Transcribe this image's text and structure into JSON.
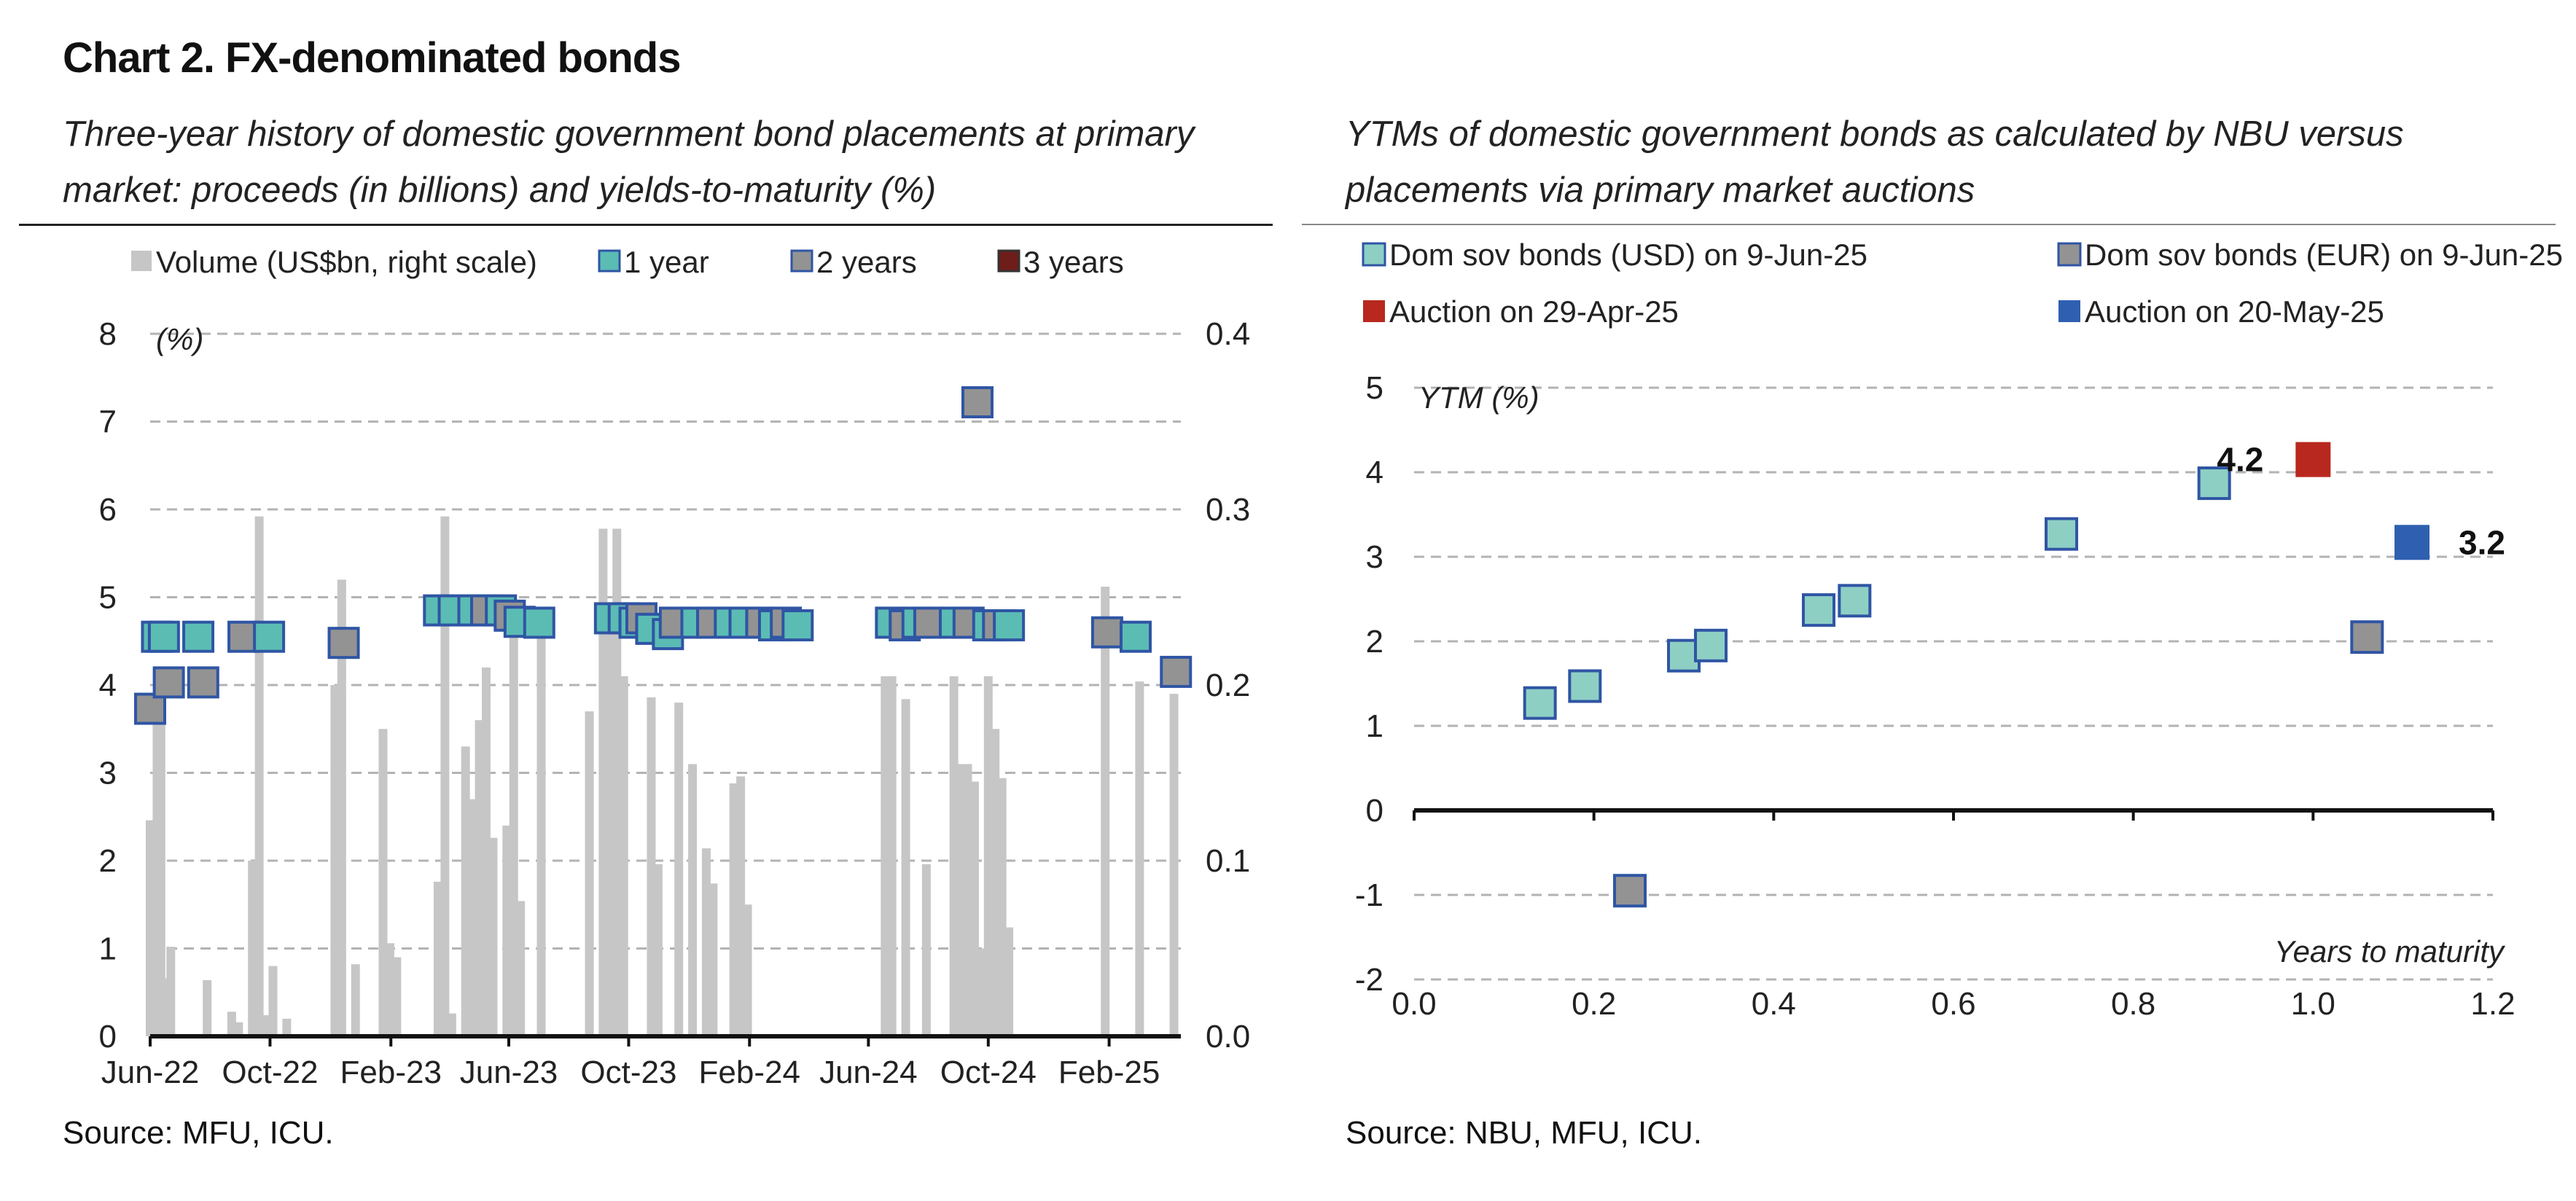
{
  "header": {
    "title": "Chart 2. FX-denominated bonds",
    "left_subtitle": "Three-year history of domestic government bond placements at primary market: proceeds (in billions) and yields-to-maturity (%)",
    "right_subtitle": "YTMs of domestic government bonds as calculated by NBU versus placements via primary market auctions"
  },
  "footer": {
    "left_source": "Source: MFU, ICU.",
    "right_source": "Source: NBU, MFU, ICU."
  },
  "colors": {
    "volume": "#c6c6c6",
    "one_year": "#5bbcb4",
    "two_year": "#939393",
    "three_year": "#6e1d1a",
    "marker_border": "#2f55a4",
    "usd": "#8ecfc4",
    "eur": "#939393",
    "auction_apr": "#b8281e",
    "auction_may": "#2f5fb0",
    "grid": "#b3b3b3"
  },
  "chart_data": [
    {
      "type": "bar",
      "title": "",
      "left_axis_label": "(%)",
      "right_axis_label": "",
      "ylim_left": [
        0,
        8
      ],
      "ylim_right": [
        0,
        0.4
      ],
      "yticks_left": [
        "0",
        "1",
        "2",
        "3",
        "4",
        "5",
        "6",
        "7",
        "8"
      ],
      "yticks_right": [
        "0.0",
        "0.1",
        "0.2",
        "0.3",
        "0.4"
      ],
      "xlim": [
        "2022-06-01",
        "2025-04-15"
      ],
      "xticks": [
        {
          "date": "2022-06-01",
          "label": "Jun-22"
        },
        {
          "date": "2022-10-01",
          "label": "Oct-22"
        },
        {
          "date": "2023-02-01",
          "label": "Feb-23"
        },
        {
          "date": "2023-06-01",
          "label": "Jun-23"
        },
        {
          "date": "2023-10-01",
          "label": "Oct-23"
        },
        {
          "date": "2024-02-01",
          "label": "Feb-24"
        },
        {
          "date": "2024-06-01",
          "label": "Jun-24"
        },
        {
          "date": "2024-10-01",
          "label": "Oct-24"
        },
        {
          "date": "2025-02-01",
          "label": "Feb-25"
        }
      ],
      "legend": [
        {
          "key": "volume",
          "label": "Volume (US$bn, right scale)"
        },
        {
          "key": "one_year",
          "label": "1 year"
        },
        {
          "key": "two_year",
          "label": "2 years"
        },
        {
          "key": "three_year",
          "label": "3 years"
        }
      ],
      "legend_position": "top",
      "grid": true,
      "volume_bars": [
        {
          "date": "2022-06-01",
          "value": 0.123
        },
        {
          "date": "2022-06-04",
          "value": 0.05
        },
        {
          "date": "2022-06-08",
          "value": 0.18
        },
        {
          "date": "2022-06-12",
          "value": 0.19
        },
        {
          "date": "2022-06-15",
          "value": 0.02
        },
        {
          "date": "2022-06-18",
          "value": 0.033
        },
        {
          "date": "2022-06-22",
          "value": 0.051
        },
        {
          "date": "2022-07-29",
          "value": 0.032
        },
        {
          "date": "2022-08-23",
          "value": 0.014
        },
        {
          "date": "2022-08-30",
          "value": 0.008
        },
        {
          "date": "2022-09-13",
          "value": 0.1
        },
        {
          "date": "2022-09-20",
          "value": 0.296
        },
        {
          "date": "2022-09-27",
          "value": 0.012
        },
        {
          "date": "2022-10-04",
          "value": 0.04
        },
        {
          "date": "2022-10-18",
          "value": 0.01
        },
        {
          "date": "2022-12-06",
          "value": 0.2
        },
        {
          "date": "2022-12-13",
          "value": 0.26
        },
        {
          "date": "2022-12-27",
          "value": 0.041
        },
        {
          "date": "2023-01-24",
          "value": 0.175
        },
        {
          "date": "2023-01-31",
          "value": 0.053
        },
        {
          "date": "2023-02-07",
          "value": 0.045
        },
        {
          "date": "2023-03-21",
          "value": 0.088
        },
        {
          "date": "2023-03-28",
          "value": 0.296
        },
        {
          "date": "2023-04-04",
          "value": 0.013
        },
        {
          "date": "2023-04-18",
          "value": 0.165
        },
        {
          "date": "2023-04-25",
          "value": 0.135
        },
        {
          "date": "2023-05-02",
          "value": 0.18
        },
        {
          "date": "2023-05-09",
          "value": 0.21
        },
        {
          "date": "2023-05-16",
          "value": 0.113
        },
        {
          "date": "2023-05-30",
          "value": 0.12
        },
        {
          "date": "2023-06-06",
          "value": 0.24
        },
        {
          "date": "2023-06-13",
          "value": 0.077
        },
        {
          "date": "2023-07-04",
          "value": 0.24
        },
        {
          "date": "2023-08-22",
          "value": 0.185
        },
        {
          "date": "2023-09-05",
          "value": 0.289
        },
        {
          "date": "2023-09-12",
          "value": 0.245
        },
        {
          "date": "2023-09-19",
          "value": 0.289
        },
        {
          "date": "2023-09-26",
          "value": 0.205
        },
        {
          "date": "2023-10-24",
          "value": 0.193
        },
        {
          "date": "2023-10-31",
          "value": 0.098
        },
        {
          "date": "2023-11-21",
          "value": 0.19
        },
        {
          "date": "2023-12-05",
          "value": 0.155
        },
        {
          "date": "2023-12-19",
          "value": 0.107
        },
        {
          "date": "2023-12-26",
          "value": 0.087
        },
        {
          "date": "2024-01-16",
          "value": 0.144
        },
        {
          "date": "2024-01-23",
          "value": 0.148
        },
        {
          "date": "2024-01-30",
          "value": 0.075
        },
        {
          "date": "2024-06-18",
          "value": 0.205
        },
        {
          "date": "2024-06-25",
          "value": 0.205
        },
        {
          "date": "2024-07-09",
          "value": 0.192
        },
        {
          "date": "2024-07-30",
          "value": 0.098
        },
        {
          "date": "2024-08-27",
          "value": 0.205
        },
        {
          "date": "2024-09-03",
          "value": 0.155
        },
        {
          "date": "2024-09-10",
          "value": 0.155
        },
        {
          "date": "2024-09-17",
          "value": 0.145
        },
        {
          "date": "2024-09-24",
          "value": 0.05
        },
        {
          "date": "2024-10-01",
          "value": 0.205
        },
        {
          "date": "2024-10-08",
          "value": 0.175
        },
        {
          "date": "2024-10-15",
          "value": 0.147
        },
        {
          "date": "2024-10-22",
          "value": 0.062
        },
        {
          "date": "2025-01-28",
          "value": 0.256
        },
        {
          "date": "2025-03-04",
          "value": 0.202
        },
        {
          "date": "2025-04-08",
          "value": 0.195
        }
      ],
      "yields": [
        {
          "date": "2022-06-01",
          "tenor": "2 years",
          "value": 3.73
        },
        {
          "date": "2022-06-08",
          "tenor": "1 year",
          "value": 4.55
        },
        {
          "date": "2022-06-15",
          "tenor": "1 year",
          "value": 4.55
        },
        {
          "date": "2022-06-20",
          "tenor": "2 years",
          "value": 4.03
        },
        {
          "date": "2022-07-20",
          "tenor": "1 year",
          "value": 4.55
        },
        {
          "date": "2022-07-25",
          "tenor": "2 years",
          "value": 4.03
        },
        {
          "date": "2022-09-04",
          "tenor": "2 years",
          "value": 4.55
        },
        {
          "date": "2022-09-30",
          "tenor": "1 year",
          "value": 4.55
        },
        {
          "date": "2022-12-15",
          "tenor": "2 years",
          "value": 4.48
        },
        {
          "date": "2023-03-22",
          "tenor": "1 year",
          "value": 4.85
        },
        {
          "date": "2023-04-06",
          "tenor": "1 year",
          "value": 4.85
        },
        {
          "date": "2023-04-26",
          "tenor": "1 year",
          "value": 4.85
        },
        {
          "date": "2023-05-09",
          "tenor": "2 years",
          "value": 4.85
        },
        {
          "date": "2023-05-24",
          "tenor": "1 year",
          "value": 4.85
        },
        {
          "date": "2023-06-02",
          "tenor": "2 years",
          "value": 4.79
        },
        {
          "date": "2023-06-12",
          "tenor": "1 year",
          "value": 4.72
        },
        {
          "date": "2023-07-02",
          "tenor": "1 year",
          "value": 4.71
        },
        {
          "date": "2023-09-12",
          "tenor": "1 year",
          "value": 4.76
        },
        {
          "date": "2023-09-26",
          "tenor": "1 year",
          "value": 4.76
        },
        {
          "date": "2023-10-07",
          "tenor": "1 year",
          "value": 4.71
        },
        {
          "date": "2023-10-14",
          "tenor": "2 years",
          "value": 4.76
        },
        {
          "date": "2023-10-24",
          "tenor": "1 year",
          "value": 4.64
        },
        {
          "date": "2023-11-10",
          "tenor": "1 year",
          "value": 4.58
        },
        {
          "date": "2023-11-17",
          "tenor": "2 years",
          "value": 4.71
        },
        {
          "date": "2023-12-09",
          "tenor": "1 year",
          "value": 4.71
        },
        {
          "date": "2023-12-25",
          "tenor": "2 years",
          "value": 4.71
        },
        {
          "date": "2024-01-12",
          "tenor": "1 year",
          "value": 4.71
        },
        {
          "date": "2024-01-27",
          "tenor": "1 year",
          "value": 4.71
        },
        {
          "date": "2024-02-13",
          "tenor": "2 years",
          "value": 4.71
        },
        {
          "date": "2024-02-26",
          "tenor": "1 year",
          "value": 4.68
        },
        {
          "date": "2024-03-09",
          "tenor": "2 years",
          "value": 4.71
        },
        {
          "date": "2024-03-21",
          "tenor": "1 year",
          "value": 4.68
        },
        {
          "date": "2024-06-24",
          "tenor": "1 year",
          "value": 4.71
        },
        {
          "date": "2024-07-08",
          "tenor": "2 years",
          "value": 4.68
        },
        {
          "date": "2024-07-21",
          "tenor": "1 year",
          "value": 4.71
        },
        {
          "date": "2024-08-02",
          "tenor": "2 years",
          "value": 4.71
        },
        {
          "date": "2024-08-28",
          "tenor": "1 year",
          "value": 4.71
        },
        {
          "date": "2024-09-11",
          "tenor": "2 years",
          "value": 4.71
        },
        {
          "date": "2024-09-20",
          "tenor": "2 years",
          "value": 7.22
        },
        {
          "date": "2024-10-01",
          "tenor": "1 year",
          "value": 4.68
        },
        {
          "date": "2024-10-11",
          "tenor": "2 years",
          "value": 4.68
        },
        {
          "date": "2024-10-22",
          "tenor": "1 year",
          "value": 4.68
        },
        {
          "date": "2025-01-30",
          "tenor": "2 years",
          "value": 4.6
        },
        {
          "date": "2025-02-28",
          "tenor": "1 year",
          "value": 4.55
        },
        {
          "date": "2025-04-10",
          "tenor": "2 years",
          "value": 4.15
        }
      ]
    },
    {
      "type": "scatter",
      "title": "",
      "xlabel": "Years to maturity",
      "ylabel": "YTM (%)",
      "xlim": [
        0.0,
        1.2
      ],
      "ylim": [
        -2,
        5
      ],
      "xticks": [
        "0.0",
        "0.2",
        "0.4",
        "0.6",
        "0.8",
        "1.0",
        "1.2"
      ],
      "yticks": [
        "-2",
        "-1",
        "0",
        "1",
        "2",
        "3",
        "4",
        "5"
      ],
      "legend_position": "top",
      "grid": true,
      "series": [
        {
          "name": "Dom sov bonds (USD) on 9-Jun-25",
          "key": "usd",
          "points": [
            {
              "x": 0.14,
              "y": 1.27
            },
            {
              "x": 0.19,
              "y": 1.47
            },
            {
              "x": 0.3,
              "y": 1.83
            },
            {
              "x": 0.33,
              "y": 1.95
            },
            {
              "x": 0.45,
              "y": 2.37
            },
            {
              "x": 0.49,
              "y": 2.48
            },
            {
              "x": 0.72,
              "y": 3.27
            },
            {
              "x": 0.89,
              "y": 3.87
            }
          ]
        },
        {
          "name": "Dom sov bonds (EUR) on 9-Jun-25",
          "key": "eur",
          "points": [
            {
              "x": 0.24,
              "y": -0.95
            },
            {
              "x": 1.06,
              "y": 2.05
            }
          ]
        },
        {
          "name": "Auction on 29-Apr-25",
          "key": "auction_apr",
          "points": [
            {
              "x": 1.0,
              "y": 4.15,
              "label": "4.2"
            }
          ]
        },
        {
          "name": "Auction on 20-May-25",
          "key": "auction_may",
          "points": [
            {
              "x": 1.11,
              "y": 3.17,
              "label": "3.2"
            }
          ]
        }
      ]
    }
  ]
}
